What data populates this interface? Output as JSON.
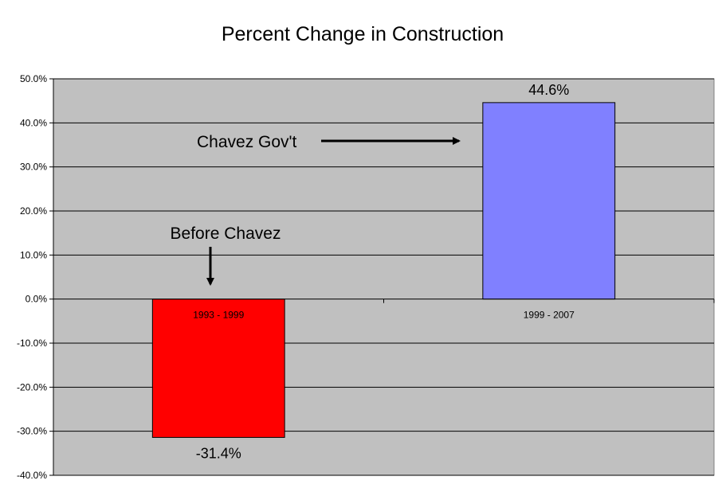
{
  "chart_data": {
    "type": "bar",
    "title": "Percent Change in Construction",
    "categories": [
      "1993 - 1999",
      "1999 - 2007"
    ],
    "values": [
      -31.4,
      44.6
    ],
    "data_labels": [
      "-31.4%",
      "44.6%"
    ],
    "bar_colors": [
      "#ff0000",
      "#8080ff"
    ],
    "ylim": [
      -40,
      50
    ],
    "y_ticks": [
      50,
      40,
      30,
      20,
      10,
      0,
      -10,
      -20,
      -30,
      -40
    ],
    "y_tick_labels": [
      "50.0%",
      "40.0%",
      "30.0%",
      "20.0%",
      "10.0%",
      "0.0%",
      "-10.0%",
      "-20.0%",
      "-30.0%",
      "-40.0%"
    ],
    "grid": true,
    "legend": "none",
    "plot_background": "#c0c0c0",
    "annotations": [
      {
        "text": "Before Chavez",
        "arrow": "down",
        "target_category": 0
      },
      {
        "text": "Chavez Gov't",
        "arrow": "right",
        "target_category": 1
      }
    ]
  }
}
